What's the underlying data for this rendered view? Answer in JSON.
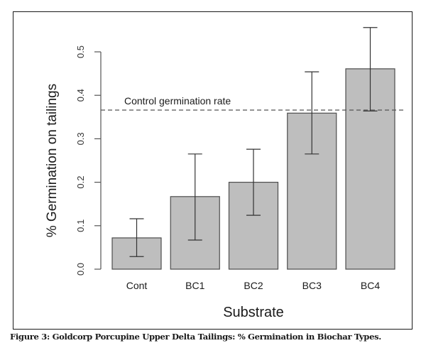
{
  "chart_data": {
    "type": "bar",
    "title": "",
    "xlabel": "Substrate",
    "ylabel": "% Germination on tailings",
    "categories": [
      "Cont",
      "BC1",
      "BC2",
      "BC3",
      "BC4"
    ],
    "values": [
      0.072,
      0.167,
      0.2,
      0.359,
      0.461
    ],
    "error_lower": [
      0.029,
      0.067,
      0.124,
      0.265,
      0.364
    ],
    "error_upper": [
      0.116,
      0.265,
      0.276,
      0.454,
      0.556
    ],
    "ylim": [
      0.0,
      0.5
    ],
    "yticks": [
      0.0,
      0.1,
      0.2,
      0.3,
      0.4,
      0.5
    ],
    "ytick_labels": [
      "0.0",
      "0.1",
      "0.2",
      "0.3",
      "0.4",
      "0.5"
    ],
    "grid": false,
    "legend": null,
    "reference_line": {
      "value": 0.366,
      "style": "dashed",
      "label": "Control germination rate"
    },
    "bar_color": "#bebebe",
    "edge_color": "#4d4d4d"
  },
  "figure": {
    "caption": "Figure 3: Goldcorp Porcupine Upper Delta Tailings: % Germination in Biochar Types."
  }
}
